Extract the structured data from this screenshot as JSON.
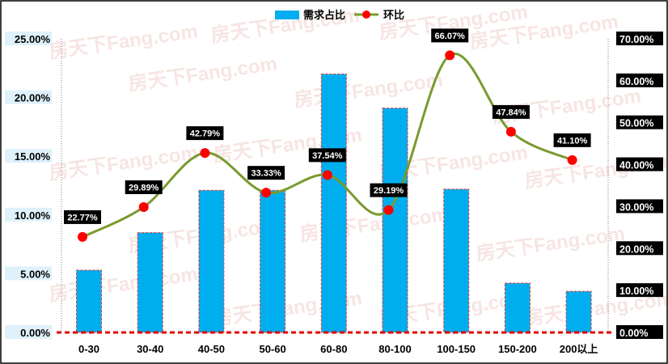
{
  "chart_data": {
    "type": "bar",
    "categories": [
      "0-30",
      "30-40",
      "40-50",
      "50-60",
      "60-80",
      "80-100",
      "100-150",
      "150-200",
      "200以上"
    ],
    "series": [
      {
        "name": "需求占比",
        "type": "bar",
        "axis": "left",
        "values": [
          5.3,
          8.5,
          12.1,
          12.1,
          22.0,
          19.1,
          12.2,
          4.2,
          3.5
        ],
        "color": "#00aeef",
        "border_color": "#e53935"
      },
      {
        "name": "环比",
        "type": "line",
        "axis": "right",
        "values": [
          22.77,
          29.89,
          42.79,
          33.33,
          37.54,
          29.19,
          66.07,
          47.84,
          41.1
        ],
        "labels": [
          "22.77%",
          "29.89%",
          "42.79%",
          "33.33%",
          "37.54%",
          "29.19%",
          "66.07%",
          "47.84%",
          "41.10%"
        ],
        "color": "#7a9a2e",
        "marker_color": "#ff0000"
      }
    ],
    "y_left": {
      "range": [
        0,
        25
      ],
      "ticks": [
        0,
        5,
        10,
        15,
        20,
        25
      ],
      "tick_labels": [
        "0.00%",
        "5.00%",
        "10.00%",
        "15.00%",
        "20.00%",
        "25.00%"
      ]
    },
    "y_right": {
      "range": [
        0,
        70
      ],
      "ticks": [
        0,
        10,
        20,
        30,
        40,
        50,
        60,
        70
      ],
      "tick_labels": [
        "0.00%",
        "10.00%",
        "20.00%",
        "30.00%",
        "40.00%",
        "50.00%",
        "60.00%",
        "70.00%"
      ]
    },
    "legend": {
      "position": "top-center",
      "entries": [
        "需求占比",
        "环比"
      ]
    },
    "grid": false,
    "watermark": "房天下Fang.com"
  }
}
